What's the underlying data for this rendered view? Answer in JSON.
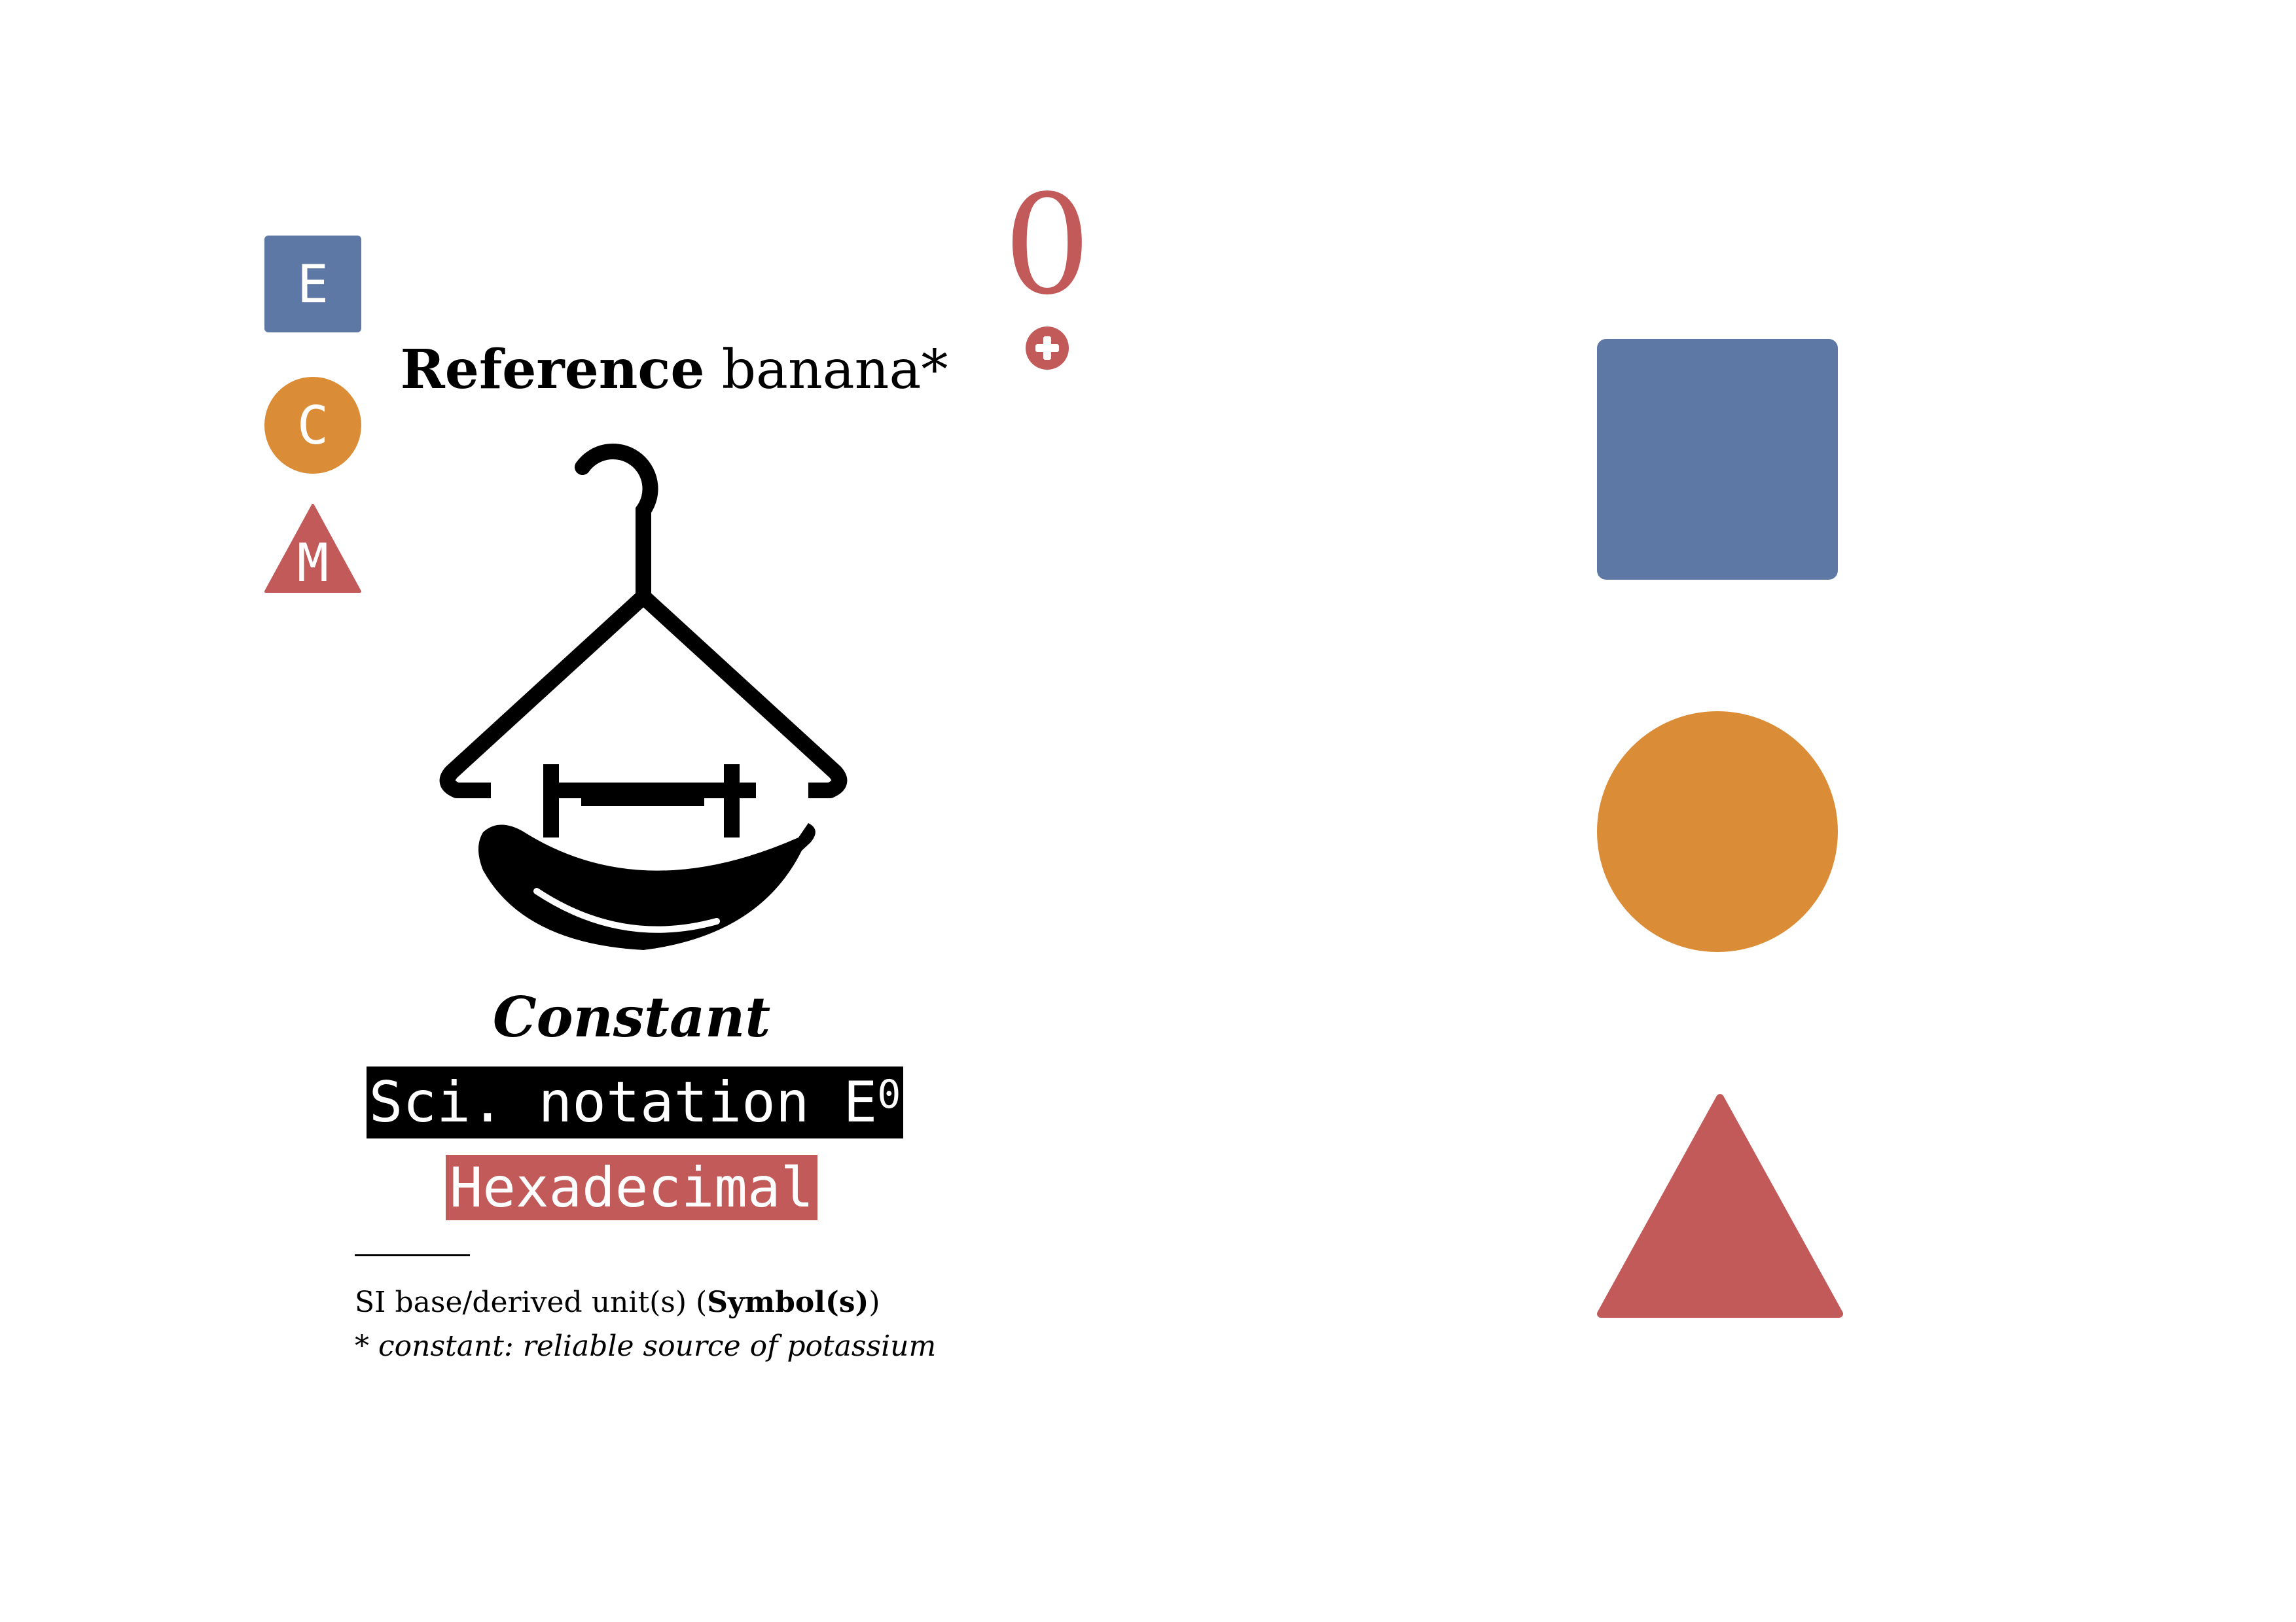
{
  "legend": {
    "e_label": "E",
    "c_label": "C",
    "m_label": "M"
  },
  "counter": {
    "value": "0"
  },
  "title": {
    "strong": "Reference",
    "rest": " banana*"
  },
  "category": "Constant",
  "sci_notation": {
    "text": "Sci. notation E",
    "exponent": "0"
  },
  "hex_label": "Hexadecimal",
  "notes": {
    "units_prefix": "SI base/derived unit(s) (",
    "units_bold": "Symbol(s)",
    "units_suffix": ")",
    "footnote": "* constant: reliable source of potassium"
  },
  "colors": {
    "blue": "#5e78a6",
    "orange": "#db8c36",
    "red": "#c25a5a",
    "black": "#000000"
  },
  "icons": {
    "main": "hanger-with-banana-icon",
    "add": "plus-circle-icon"
  }
}
